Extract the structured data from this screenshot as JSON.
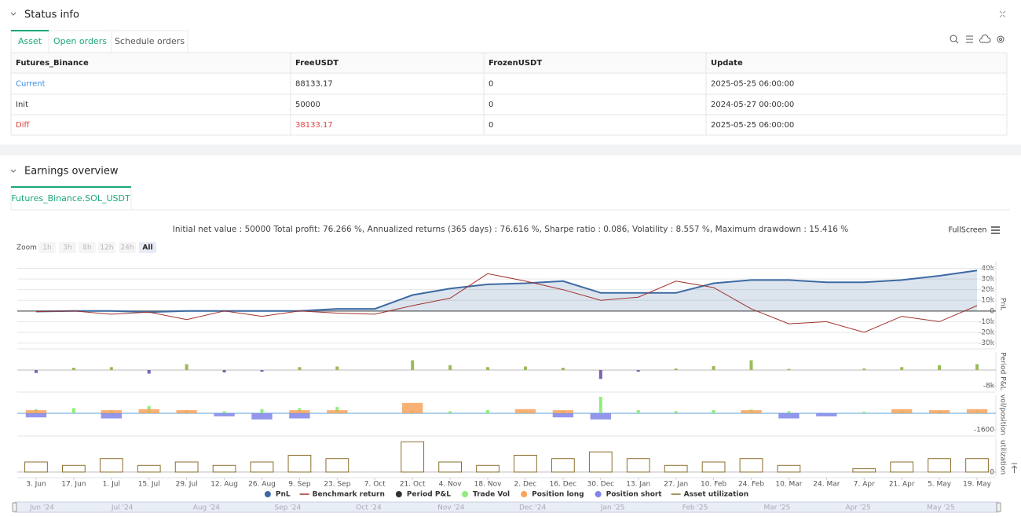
{
  "status": {
    "title": "Status info",
    "tabs": [
      "Asset",
      "Open orders",
      "Schedule orders"
    ]
  },
  "table": {
    "header": [
      "Futures_Binance",
      "FreeUSDT",
      "FrozenUSDT",
      "Update"
    ],
    "rows": [
      [
        "Current",
        "88133.17",
        "0",
        "2025-05-25 06:00:00"
      ],
      [
        "Init",
        "50000",
        "0",
        "2024-05-27 00:00:00"
      ],
      [
        "Diff",
        "38133.17",
        "0",
        "2025-05-25 06:00:00"
      ]
    ]
  },
  "earnings": {
    "title": "Earnings overview",
    "tab": "Futures_Binance.SOL_USDT",
    "summary": "Initial net value : 50000 Total profit: 76.266 %, Annualized returns (365 days) : 76.616 %, Sharpe ratio : 0.086, Volatility : 8.557 %, Maximum drawdown : 15.416 %",
    "fullscreen": "FullScreen",
    "zoom_label": "Zoom",
    "zoom_buttons": [
      "1h",
      "3h",
      "8h",
      "12h",
      "24h",
      "All"
    ]
  },
  "chart_data": [
    {
      "type": "line",
      "y_label": "PnL",
      "ylim": [
        -34000,
        47000
      ],
      "grid": true,
      "yticks": [
        {
          "value": 40000,
          "label": "40k"
        },
        {
          "value": 30000,
          "label": "30k"
        },
        {
          "value": 20000,
          "label": "20k"
        },
        {
          "value": 10000,
          "label": "10k"
        },
        0,
        {
          "value": -10000,
          "label": "-10k"
        },
        {
          "value": -20000,
          "label": "-20k"
        },
        {
          "value": -30000,
          "label": "-30k"
        }
      ],
      "series": [
        {
          "name": "PnL",
          "color": "#3d6aa3",
          "marker": "circle",
          "area": true,
          "values": [
            -500,
            0,
            0,
            -1000,
            0,
            0,
            0,
            0,
            2000,
            2000,
            15000,
            21000,
            25000,
            26000,
            28000,
            17000,
            17000,
            17000,
            26000,
            29000,
            29000,
            27000,
            27000,
            29000,
            33000,
            38000
          ]
        },
        {
          "name": "Benchmark return",
          "color": "#a0322e",
          "marker": "line",
          "values": [
            -500,
            0,
            -3000,
            -1000,
            -8000,
            0,
            -5000,
            0,
            -2000,
            -3000,
            5000,
            12000,
            35000,
            28000,
            20000,
            10000,
            13000,
            28000,
            22000,
            2000,
            -12000,
            -10000,
            -20000,
            -5000,
            -10000,
            5000
          ]
        }
      ]
    },
    {
      "type": "bar",
      "y_label": "Period P&L",
      "ylim": [
        -10400,
        9200
      ],
      "grid": false,
      "yticks": [
        {
          "value": -8000,
          "label": "-8k"
        }
      ],
      "series": [
        {
          "name": "Period P&L",
          "color": "#333333",
          "up_color": "#9bbb59",
          "down_color": "#7b62b0",
          "marker": "circle",
          "values": [
            -1500,
            1200,
            1500,
            -1800,
            3000,
            -1200,
            -800,
            1500,
            1800,
            0,
            5000,
            2500,
            1500,
            1800,
            1200,
            -4500,
            -800,
            800,
            2000,
            5000,
            600,
            0,
            800,
            1500,
            2500,
            3000
          ]
        }
      ]
    },
    {
      "type": "bar",
      "y_label": "vol/position",
      "ylim": [
        -2060,
        1750
      ],
      "grid": false,
      "yticks": [
        -1600
      ],
      "series": [
        {
          "name": "Trade Vol",
          "color": "#90ed7d",
          "marker": "circle",
          "values": [
            400,
            500,
            300,
            700,
            300,
            200,
            400,
            500,
            600,
            0,
            300,
            200,
            300,
            200,
            250,
            1600,
            300,
            200,
            300,
            350,
            200,
            0,
            150,
            250,
            200,
            300
          ]
        },
        {
          "name": "Position long",
          "color": "#f7a35c",
          "marker": "circle",
          "values": [
            300,
            0,
            300,
            400,
            300,
            0,
            0,
            300,
            300,
            0,
            1000,
            0,
            0,
            400,
            300,
            0,
            0,
            0,
            0,
            300,
            0,
            0,
            0,
            400,
            300,
            400
          ]
        },
        {
          "name": "Position short",
          "color": "#8085e9",
          "marker": "circle",
          "values": [
            -400,
            0,
            -500,
            0,
            0,
            -300,
            -600,
            -500,
            0,
            0,
            0,
            0,
            0,
            0,
            -400,
            -600,
            0,
            0,
            0,
            0,
            -500,
            -300,
            0,
            0,
            0,
            0
          ]
        }
      ]
    },
    {
      "type": "bar",
      "y_label": "utilization",
      "ylim": [
        -0.12,
        1
      ],
      "grid": false,
      "yticks": [
        0
      ],
      "categories": [
        "3. Jun",
        "17. Jun",
        "1. Jul",
        "15. Jul",
        "29. Jul",
        "12. Aug",
        "26. Aug",
        "9. Sep",
        "23. Sep",
        "7. Oct",
        "21. Oct",
        "4. Nov",
        "18. Nov",
        "2. Dec",
        "16. Dec",
        "30. Dec",
        "13. Jan",
        "27. Jan",
        "10. Feb",
        "24. Feb",
        "10. Mar",
        "24. Mar",
        "7. Apr",
        "21. Apr",
        "5. May",
        "19. May"
      ],
      "series": [
        {
          "name": "Asset utilization",
          "color": "#8b6f2e",
          "marker": "line",
          "outline": true,
          "values": [
            0.3,
            0.2,
            0.4,
            0.2,
            0.3,
            0.2,
            0.3,
            0.5,
            0.4,
            0,
            0.9,
            0.3,
            0.2,
            0.5,
            0.4,
            0.6,
            0.4,
            0.2,
            0.3,
            0.4,
            0.2,
            0,
            0.1,
            0.3,
            0.4,
            0.4
          ]
        }
      ]
    }
  ],
  "navigator": {
    "labels": [
      "Jun '24",
      "Jul '24",
      "Aug '24",
      "Sep '24",
      "Oct '24",
      "Nov '24",
      "Dec '24",
      "Jan '25",
      "Feb '25",
      "Mar '25",
      "Apr '25",
      "May '25"
    ]
  }
}
